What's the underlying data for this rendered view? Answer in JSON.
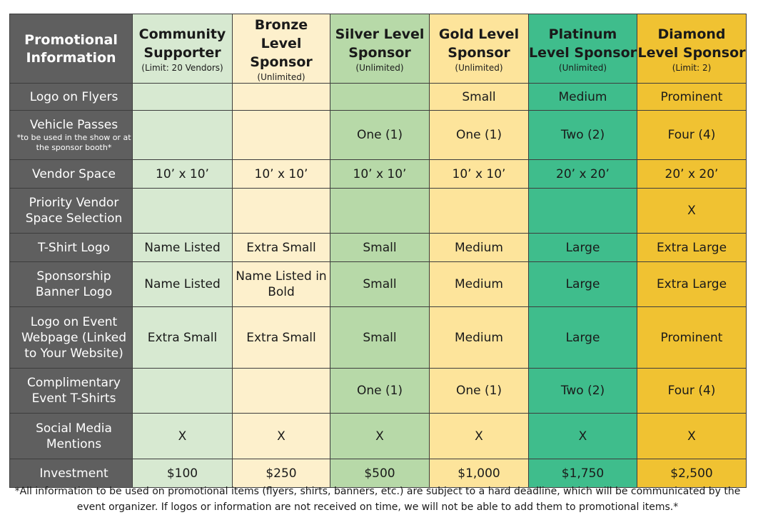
{
  "header": {
    "promo": "Promotional Information",
    "tiers": [
      {
        "name": "Community Supporter",
        "limit": "(Limit: 20 Vendors)"
      },
      {
        "name": "Bronze Level Sponsor",
        "limit": "(Unlimited)"
      },
      {
        "name": "Silver Level Sponsor",
        "limit": "(Unlimited)"
      },
      {
        "name": "Gold Level Sponsor",
        "limit": "(Unlimited)"
      },
      {
        "name": "Platinum Level Sponsor",
        "limit": "(Unlimited)"
      },
      {
        "name": "Diamond Level Sponsor",
        "limit": "(Limit: 2)"
      }
    ]
  },
  "rows": [
    {
      "label": "Logo on Flyers",
      "cells": [
        "",
        "",
        "",
        "Small",
        "Medium",
        "Prominent"
      ]
    },
    {
      "label": "Vehicle Passes",
      "note": "*to be used in the show or at the sponsor booth*",
      "cells": [
        "",
        "",
        "One (1)",
        "One (1)",
        "Two (2)",
        "Four (4)"
      ]
    },
    {
      "label": "Vendor Space",
      "cells": [
        "10’ x 10’",
        "10’ x 10’",
        "10’ x 10’",
        "10’ x 10’",
        "20’ x 20’",
        "20’ x 20’"
      ]
    },
    {
      "label": "Priority Vendor Space Selection",
      "cells": [
        "",
        "",
        "",
        "",
        "",
        "X"
      ]
    },
    {
      "label": "T-Shirt Logo",
      "cells": [
        "Name Listed",
        "Extra Small",
        "Small",
        "Medium",
        "Large",
        "Extra Large"
      ]
    },
    {
      "label": "Sponsorship Banner Logo",
      "cells": [
        "Name Listed",
        "Name Listed in Bold",
        "Small",
        "Medium",
        "Large",
        "Extra Large"
      ]
    },
    {
      "label": "Logo on Event Webpage (Linked to Your Website)",
      "cells": [
        "Extra Small",
        "Extra Small",
        "Small",
        "Medium",
        "Large",
        "Prominent"
      ]
    },
    {
      "label": "Complimentary Event T-Shirts",
      "cells": [
        "",
        "",
        "One (1)",
        "One (1)",
        "Two (2)",
        "Four (4)"
      ]
    },
    {
      "label": "Social Media Mentions",
      "cells": [
        "X",
        "X",
        "X",
        "X",
        "X",
        "X"
      ]
    },
    {
      "label": "Investment",
      "cells": [
        "$100",
        "$250",
        "$500",
        "$1,000",
        "$1,750",
        "$2,500"
      ]
    }
  ],
  "footer": "*All information to be used on promotional items (flyers, shirts, banners, etc.) are subject to a hard deadline, which will be communicated by the event organizer. If logos or information are not received on time, we will not be able to add them to promotional items.*"
}
